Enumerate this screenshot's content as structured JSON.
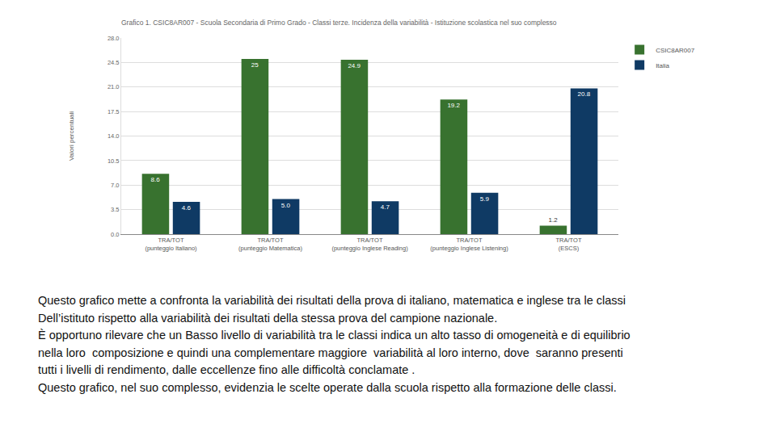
{
  "chart_data": {
    "type": "bar",
    "title": "Grafico 1. CSIC8AR007 - Scuola Secondaria di Primo Grado - Classi terze. Incidenza della variabilità - Istituzione scolastica nel suo complesso",
    "y_label": "Valori percentuali",
    "categories": [
      "TRA/TOT\n(punteggio Italiano)",
      "TRA/TOT\n(punteggio Matematica)",
      "TRA/TOT\n(punteggio Inglese Reading)",
      "TRA/TOT\n(punteggio Inglese Listening)",
      "TRA/TOT\n(ESCS)"
    ],
    "series": [
      {
        "name": "CSIC8AR007",
        "color": "#38722f",
        "values": [
          8.6,
          25,
          24.9,
          19.2,
          1.2
        ],
        "value_labels": [
          "8.6",
          "25",
          "24.9",
          "19.2",
          "1.2"
        ]
      },
      {
        "name": "Italia",
        "color": "#0f3a64",
        "values": [
          4.6,
          5.0,
          4.7,
          5.9,
          20.8
        ],
        "value_labels": [
          "4.6",
          "5.0",
          "4.7",
          "5.9",
          "20.8"
        ]
      }
    ],
    "ylim": [
      0,
      28
    ],
    "yticks": [
      {
        "value": 0,
        "label": "0.0"
      },
      {
        "value": 3.5,
        "label": "3.5"
      },
      {
        "value": 7,
        "label": "7.0"
      },
      {
        "value": 10.5,
        "label": "10.5"
      },
      {
        "value": 14,
        "label": "14.0"
      },
      {
        "value": 17.5,
        "label": "17.5"
      },
      {
        "value": 21,
        "label": "21.0"
      },
      {
        "value": 24.5,
        "label": "24.5"
      },
      {
        "value": 28,
        "label": "28.0"
      }
    ],
    "grid": true,
    "legend": "top right",
    "data_labels": true
  },
  "caption_lines": [
    "Questo grafico mette a confronta la variabilità dei risultati della prova di italiano, matematica e inglese tra le classi",
    "Dell’istituto rispetto alla variabilità dei risultati della stessa prova del campione nazionale.",
    "È opportuno rilevare che un Basso livello di variabilità tra le classi indica un alto tasso di omogeneità e di equilibrio",
    "nella loro  composizione e quindi una complementare maggiore  variabilità al loro interno, dove  saranno presenti",
    "tutti i livelli di rendimento, dalle eccellenze fino alle difficoltà conclamate .",
    "Questo grafico, nel suo complesso, evidenzia le scelte operate dalla scuola rispetto alla formazione delle classi."
  ]
}
